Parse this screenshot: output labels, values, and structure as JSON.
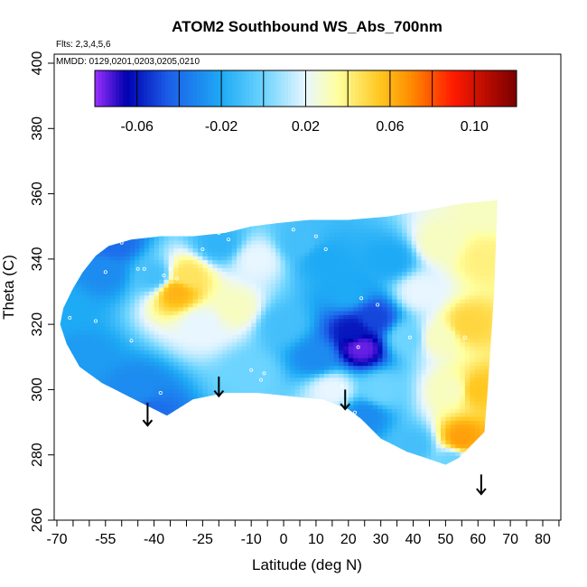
{
  "chart_data": {
    "type": "heatmap",
    "title": "ATOM2 Southbound WS_Abs_700nm",
    "annotations": [
      "Flts: 2,3,4,5,6",
      "MMDD: 0129,0201,0203,0205,0210"
    ],
    "xlabel": "Latitude (deg N)",
    "ylabel": "Theta (C)",
    "xlim": [
      -70,
      85
    ],
    "ylim": [
      260,
      400
    ],
    "x_ticks": [
      -70,
      -55,
      -40,
      -25,
      -10,
      0,
      10,
      20,
      30,
      40,
      50,
      60,
      70,
      80
    ],
    "x_tick_labels": [
      "-70",
      "-55",
      "-40",
      "-25",
      "-10",
      "0",
      "10",
      "20",
      "30",
      "40",
      "50",
      "60",
      "70",
      "80"
    ],
    "x_minor_ticks": [
      -65,
      -60,
      -50,
      -45,
      -35,
      -30,
      -20,
      -15,
      -5,
      5,
      15,
      25,
      35,
      45,
      55,
      65,
      75,
      85
    ],
    "y_ticks": [
      260,
      280,
      300,
      320,
      340,
      360,
      380,
      400
    ],
    "y_tick_labels": [
      "260",
      "280",
      "300",
      "320",
      "340",
      "360",
      "380",
      "400"
    ],
    "colorbar": {
      "min": -0.08,
      "max": 0.12,
      "ticks": [
        -0.06,
        -0.02,
        0.02,
        0.06,
        0.1
      ],
      "tick_labels": [
        "-0.06",
        "-0.02",
        "0.02",
        "0.06",
        "0.10"
      ],
      "stops": [
        {
          "v": -0.08,
          "c": "#9b30ff"
        },
        {
          "v": -0.065,
          "c": "#0000b0"
        },
        {
          "v": -0.045,
          "c": "#1c5ee8"
        },
        {
          "v": -0.02,
          "c": "#1eaaf5"
        },
        {
          "v": 0.0,
          "c": "#6cd4ff"
        },
        {
          "v": 0.02,
          "c": "#e8f6ff"
        },
        {
          "v": 0.035,
          "c": "#ffffa0"
        },
        {
          "v": 0.055,
          "c": "#ffc820"
        },
        {
          "v": 0.07,
          "c": "#ff8c00"
        },
        {
          "v": 0.09,
          "c": "#ff1a00"
        },
        {
          "v": 0.12,
          "c": "#7a0000"
        }
      ]
    },
    "region_outline": [
      [
        -68,
        325
      ],
      [
        -65,
        331
      ],
      [
        -62,
        336
      ],
      [
        -58,
        341
      ],
      [
        -54,
        344
      ],
      [
        -47,
        346
      ],
      [
        -38,
        347
      ],
      [
        -28,
        347
      ],
      [
        -18,
        348
      ],
      [
        -10,
        350
      ],
      [
        -2,
        351
      ],
      [
        8,
        352
      ],
      [
        20,
        352
      ],
      [
        32,
        353
      ],
      [
        44,
        355
      ],
      [
        55,
        357
      ],
      [
        66,
        358
      ],
      [
        65,
        330
      ],
      [
        63,
        300
      ],
      [
        62,
        287
      ],
      [
        58,
        283
      ],
      [
        54,
        279
      ],
      [
        50,
        277
      ],
      [
        44,
        279
      ],
      [
        38,
        281
      ],
      [
        30,
        285
      ],
      [
        24,
        291
      ],
      [
        20,
        294
      ],
      [
        12,
        297
      ],
      [
        2,
        298
      ],
      [
        -8,
        299
      ],
      [
        -18,
        299
      ],
      [
        -28,
        297
      ],
      [
        -36,
        292
      ],
      [
        -42,
        295
      ],
      [
        -48,
        298
      ],
      [
        -56,
        302
      ],
      [
        -63,
        307
      ],
      [
        -67,
        314
      ],
      [
        -69,
        320
      ]
    ],
    "field_points": [
      {
        "x": -68,
        "y": 325,
        "v": -0.02
      },
      {
        "x": -62,
        "y": 310,
        "v": -0.025
      },
      {
        "x": -55,
        "y": 336,
        "v": -0.03
      },
      {
        "x": -52,
        "y": 345,
        "v": -0.04
      },
      {
        "x": -45,
        "y": 300,
        "v": -0.03
      },
      {
        "x": -42,
        "y": 293,
        "v": -0.04
      },
      {
        "x": -40,
        "y": 335,
        "v": -0.01
      },
      {
        "x": -33,
        "y": 330,
        "v": 0.06
      },
      {
        "x": -30,
        "y": 335,
        "v": 0.045
      },
      {
        "x": -25,
        "y": 320,
        "v": 0.02
      },
      {
        "x": -20,
        "y": 345,
        "v": -0.015
      },
      {
        "x": -15,
        "y": 325,
        "v": 0.03
      },
      {
        "x": -10,
        "y": 305,
        "v": 0.0
      },
      {
        "x": -8,
        "y": 340,
        "v": 0.02
      },
      {
        "x": 0,
        "y": 320,
        "v": -0.01
      },
      {
        "x": 5,
        "y": 345,
        "v": -0.01
      },
      {
        "x": 12,
        "y": 340,
        "v": -0.02
      },
      {
        "x": 10,
        "y": 310,
        "v": -0.03
      },
      {
        "x": 15,
        "y": 300,
        "v": 0.02
      },
      {
        "x": 20,
        "y": 330,
        "v": -0.02
      },
      {
        "x": 22,
        "y": 318,
        "v": -0.06
      },
      {
        "x": 24,
        "y": 313,
        "v": -0.075
      },
      {
        "x": 28,
        "y": 322,
        "v": -0.05
      },
      {
        "x": 30,
        "y": 300,
        "v": 0.0
      },
      {
        "x": 25,
        "y": 292,
        "v": -0.03
      },
      {
        "x": 33,
        "y": 340,
        "v": -0.02
      },
      {
        "x": 38,
        "y": 316,
        "v": 0.0
      },
      {
        "x": 40,
        "y": 283,
        "v": -0.01
      },
      {
        "x": 42,
        "y": 330,
        "v": 0.02
      },
      {
        "x": 48,
        "y": 345,
        "v": 0.03
      },
      {
        "x": 48,
        "y": 316,
        "v": 0.03
      },
      {
        "x": 52,
        "y": 300,
        "v": 0.03
      },
      {
        "x": 55,
        "y": 285,
        "v": 0.065
      },
      {
        "x": 57,
        "y": 320,
        "v": 0.05
      },
      {
        "x": 60,
        "y": 300,
        "v": 0.055
      },
      {
        "x": 62,
        "y": 340,
        "v": 0.04
      },
      {
        "x": 64,
        "y": 355,
        "v": 0.03
      },
      {
        "x": 52,
        "y": 278,
        "v": 0.0
      }
    ],
    "sample_points": [
      [
        -66,
        322
      ],
      [
        -58,
        321
      ],
      [
        -55,
        336
      ],
      [
        -50,
        345
      ],
      [
        -47,
        315
      ],
      [
        -45,
        337
      ],
      [
        -43,
        337
      ],
      [
        -37,
        335
      ],
      [
        -35,
        337
      ],
      [
        -33,
        334
      ],
      [
        -38,
        299
      ],
      [
        -25,
        343
      ],
      [
        -20,
        348
      ],
      [
        -17,
        346
      ],
      [
        -10,
        306
      ],
      [
        -7,
        303
      ],
      [
        -6,
        305
      ],
      [
        3,
        349
      ],
      [
        10,
        347
      ],
      [
        13,
        343
      ],
      [
        18,
        301
      ],
      [
        19,
        296
      ],
      [
        22,
        293
      ],
      [
        23,
        313
      ],
      [
        24,
        328
      ],
      [
        29,
        326
      ],
      [
        39,
        316
      ],
      [
        56,
        316
      ]
    ],
    "arrows": [
      {
        "x": -42,
        "y_top": 296,
        "y_bottom": 289
      },
      {
        "x": -20,
        "y_top": 304,
        "y_bottom": 298
      },
      {
        "x": 19,
        "y_top": 300,
        "y_bottom": 294
      },
      {
        "x": 61,
        "y_top": 274,
        "y_bottom": 268
      }
    ]
  }
}
